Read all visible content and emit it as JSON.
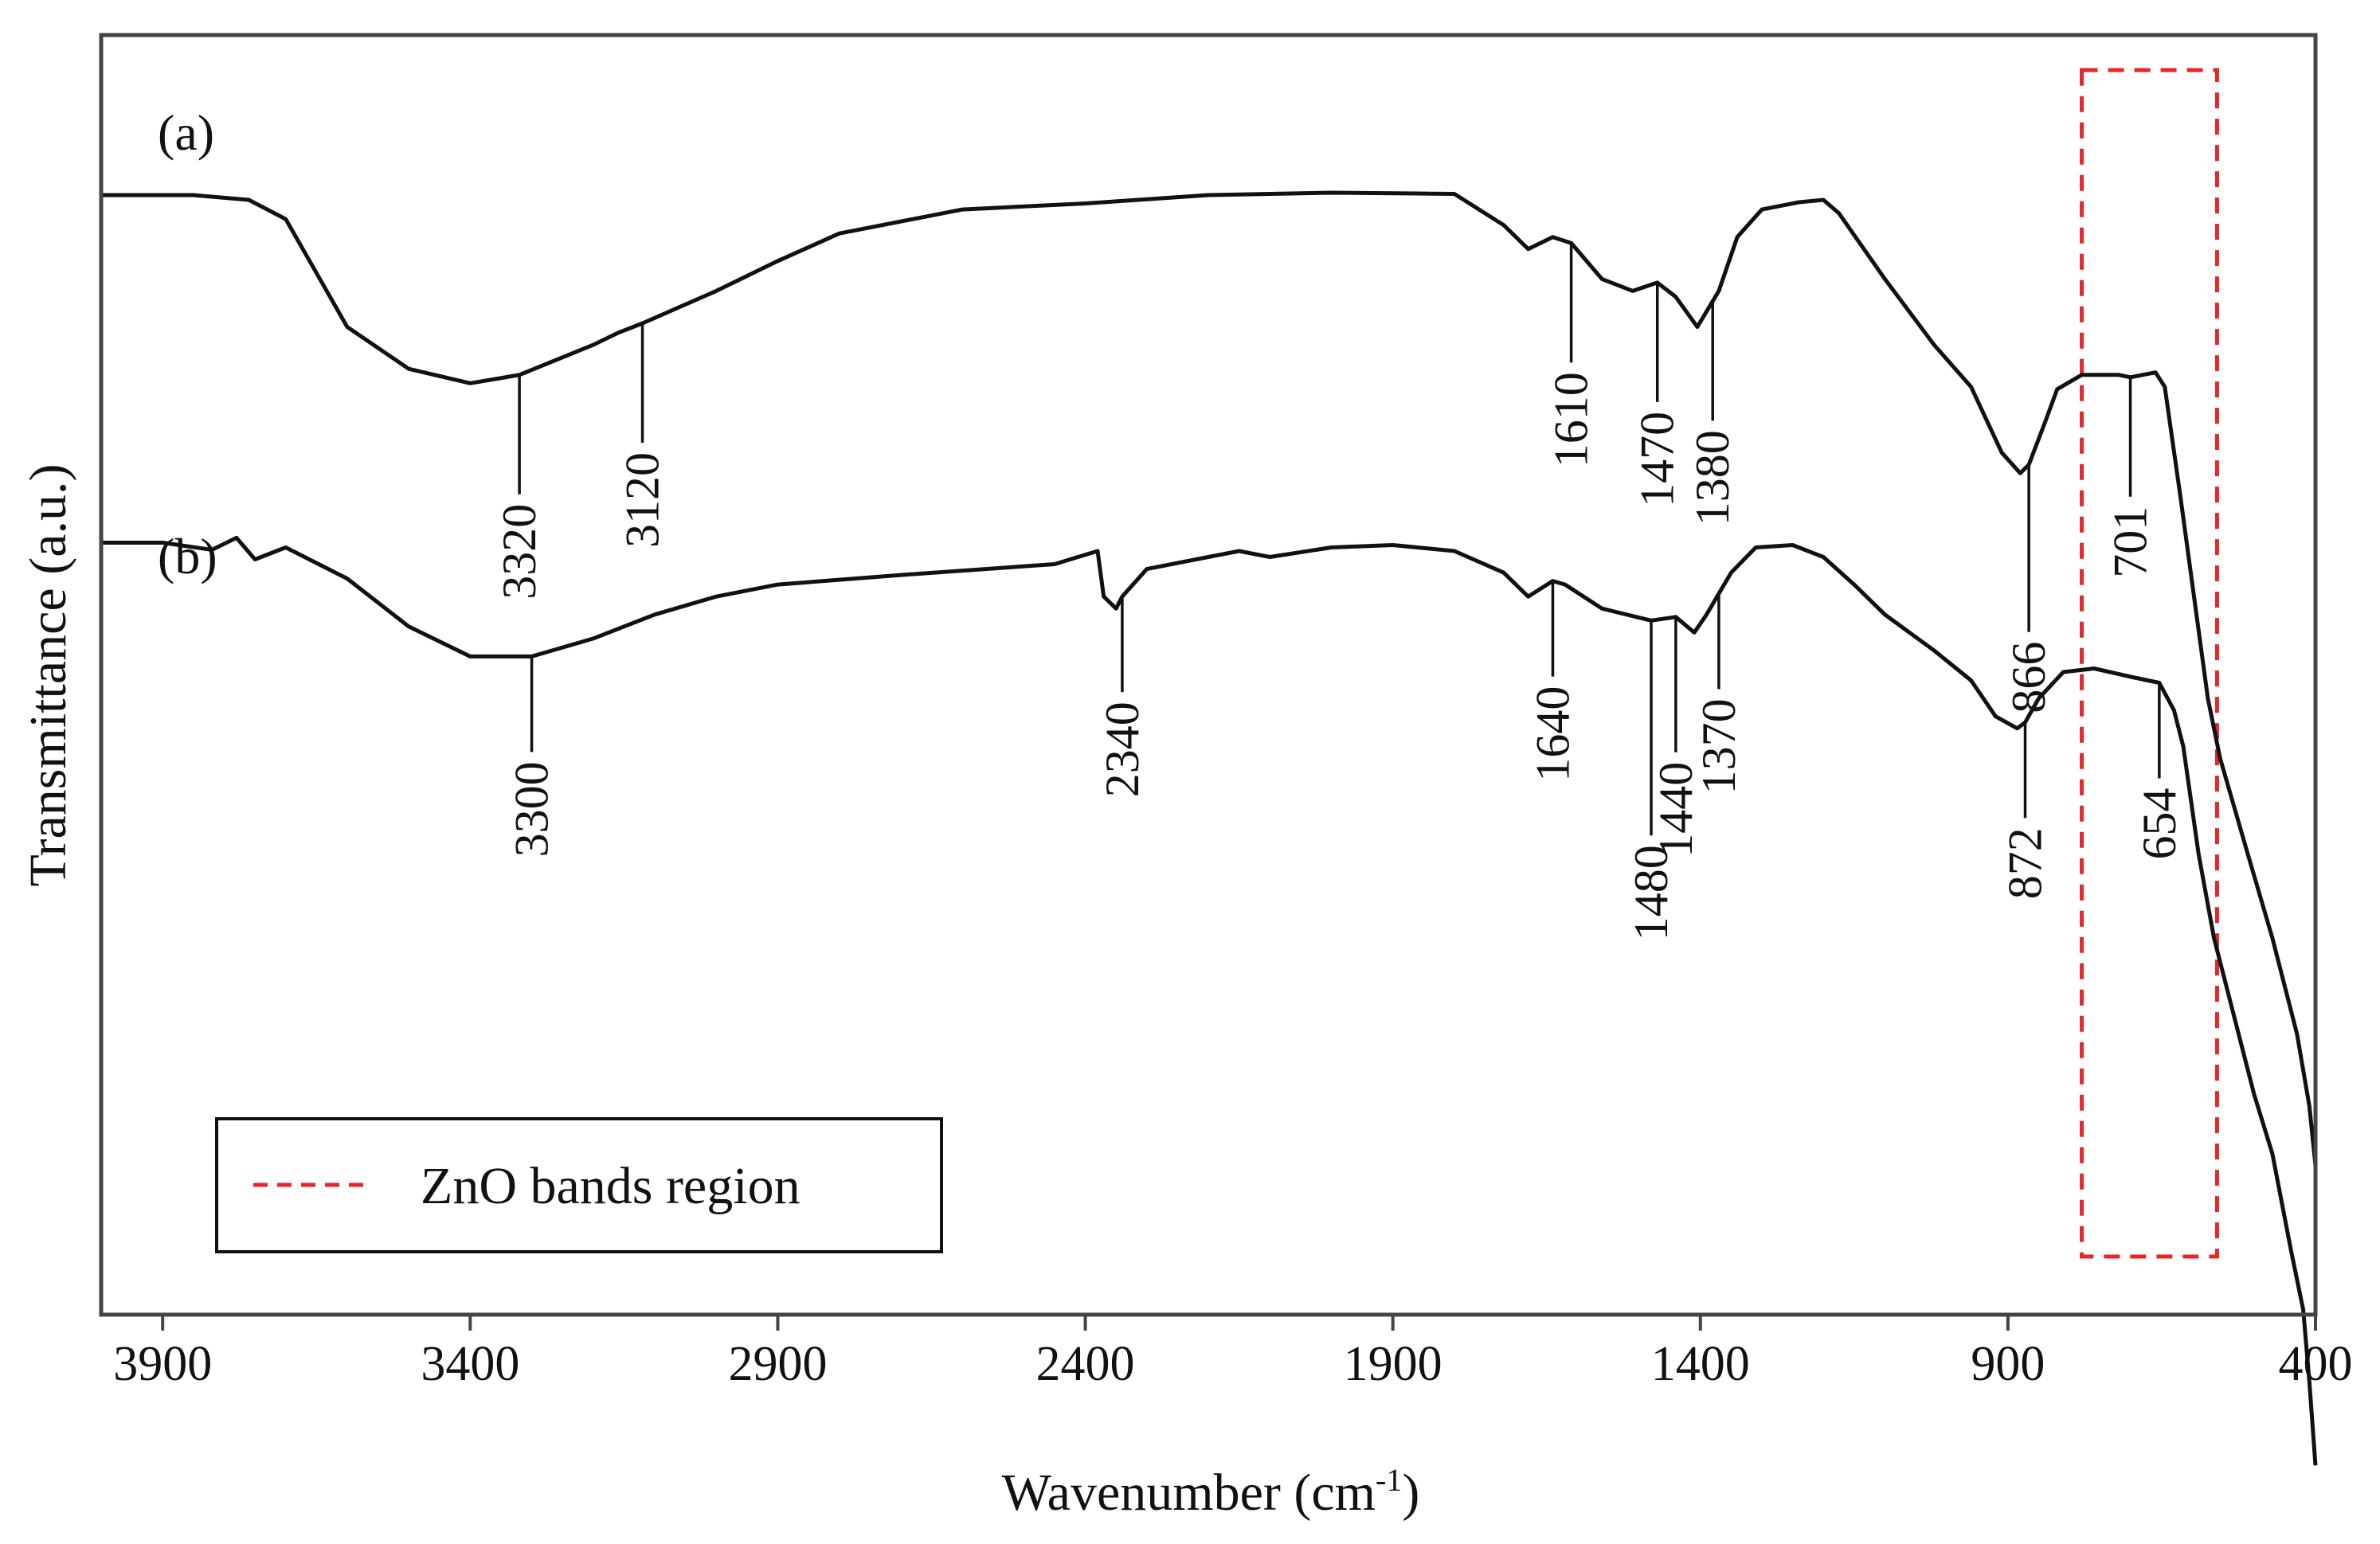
{
  "chart_data": {
    "type": "line",
    "title": "",
    "xlabel": "Wavenumber (cm",
    "xlabel_superscript": "-1",
    "xlabel_suffix": ")",
    "ylabel": "Transmittance (a.u.)",
    "xlim": [
      4000,
      400
    ],
    "x_reversed": true,
    "x_ticks": [
      3900,
      3400,
      2900,
      2400,
      1900,
      1400,
      900,
      400
    ],
    "y_ticks": [],
    "grid": false,
    "legend": {
      "position": "bottom-left",
      "entries": [
        {
          "label": "ZnO bands region",
          "style": "red-dashed"
        }
      ]
    },
    "highlight_region": {
      "label": "ZnO bands region",
      "x_range": [
        780,
        560
      ],
      "color": "#e8262a"
    },
    "series": [
      {
        "name": "(a)",
        "label": "(a)",
        "color": "#111111",
        "offset": 0,
        "points": [
          [
            4000,
            100
          ],
          [
            3850,
            100
          ],
          [
            3760,
            99.6
          ],
          [
            3700,
            98
          ],
          [
            3600,
            89
          ],
          [
            3500,
            85.5
          ],
          [
            3400,
            84.3
          ],
          [
            3320,
            85
          ],
          [
            3200,
            87.5
          ],
          [
            3160,
            88.5
          ],
          [
            3120,
            89.3
          ],
          [
            3000,
            92
          ],
          [
            2900,
            94.5
          ],
          [
            2800,
            96.8
          ],
          [
            2600,
            98.8
          ],
          [
            2400,
            99.3
          ],
          [
            2200,
            100
          ],
          [
            2000,
            100.2
          ],
          [
            1800,
            100.1
          ],
          [
            1720,
            97.5
          ],
          [
            1680,
            95.5
          ],
          [
            1640,
            96.5
          ],
          [
            1610,
            96
          ],
          [
            1560,
            93
          ],
          [
            1510,
            92
          ],
          [
            1470,
            92.7
          ],
          [
            1440,
            91.5
          ],
          [
            1405,
            89
          ],
          [
            1370,
            92
          ],
          [
            1340,
            96.5
          ],
          [
            1300,
            98.8
          ],
          [
            1240,
            99.4
          ],
          [
            1200,
            99.6
          ],
          [
            1175,
            98.5
          ],
          [
            1100,
            93
          ],
          [
            1020,
            87.5
          ],
          [
            960,
            84
          ],
          [
            910,
            78.5
          ],
          [
            880,
            76.8
          ],
          [
            866,
            77.5
          ],
          [
            840,
            81
          ],
          [
            820,
            83.8
          ],
          [
            780,
            85
          ],
          [
            720,
            85
          ],
          [
            701,
            84.8
          ],
          [
            660,
            85.2
          ],
          [
            645,
            84
          ],
          [
            620,
            75
          ],
          [
            575,
            58
          ],
          [
            555,
            53
          ],
          [
            510,
            45
          ],
          [
            470,
            38
          ],
          [
            430,
            30
          ],
          [
            410,
            24
          ],
          [
            400,
            19
          ]
        ],
        "peaks": [
          {
            "wavenumber": 3320,
            "label": "3320"
          },
          {
            "wavenumber": 3120,
            "label": "3120"
          },
          {
            "wavenumber": 1610,
            "label": "1610"
          },
          {
            "wavenumber": 1470,
            "label": "1470"
          },
          {
            "wavenumber": 1380,
            "label": "1380"
          },
          {
            "wavenumber": 866,
            "label": "866"
          },
          {
            "wavenumber": 701,
            "label": "701"
          }
        ]
      },
      {
        "name": "(b)",
        "label": "(b)",
        "color": "#111111",
        "offset": -30,
        "points": [
          [
            4000,
            101
          ],
          [
            3900,
            101
          ],
          [
            3820,
            100.4
          ],
          [
            3780,
            101.4
          ],
          [
            3750,
            99.6
          ],
          [
            3700,
            100.6
          ],
          [
            3600,
            98
          ],
          [
            3500,
            94
          ],
          [
            3400,
            91.5
          ],
          [
            3300,
            91.5
          ],
          [
            3200,
            93
          ],
          [
            3100,
            95
          ],
          [
            3000,
            96.5
          ],
          [
            2900,
            97.5
          ],
          [
            2700,
            98.3
          ],
          [
            2450,
            99.2
          ],
          [
            2380,
            100.3
          ],
          [
            2370,
            96.5
          ],
          [
            2350,
            95.5
          ],
          [
            2340,
            96.5
          ],
          [
            2300,
            98.8
          ],
          [
            2200,
            99.8
          ],
          [
            2150,
            100.3
          ],
          [
            2100,
            99.8
          ],
          [
            2000,
            100.6
          ],
          [
            1900,
            100.8
          ],
          [
            1800,
            100.3
          ],
          [
            1720,
            98.5
          ],
          [
            1680,
            96.5
          ],
          [
            1640,
            97.8
          ],
          [
            1620,
            97.5
          ],
          [
            1560,
            95.5
          ],
          [
            1480,
            94.5
          ],
          [
            1440,
            94.8
          ],
          [
            1410,
            93.5
          ],
          [
            1390,
            95
          ],
          [
            1350,
            98.5
          ],
          [
            1310,
            100.6
          ],
          [
            1250,
            100.8
          ],
          [
            1200,
            99.8
          ],
          [
            1150,
            97.5
          ],
          [
            1100,
            95
          ],
          [
            1020,
            92
          ],
          [
            960,
            89.5
          ],
          [
            920,
            86.5
          ],
          [
            885,
            85.5
          ],
          [
            872,
            86
          ],
          [
            850,
            88
          ],
          [
            810,
            90.2
          ],
          [
            760,
            90.5
          ],
          [
            700,
            89.8
          ],
          [
            654,
            89.3
          ],
          [
            630,
            87
          ],
          [
            615,
            84
          ],
          [
            590,
            75
          ],
          [
            565,
            68
          ],
          [
            540,
            63
          ],
          [
            500,
            55
          ],
          [
            470,
            50
          ],
          [
            440,
            42
          ],
          [
            420,
            37
          ],
          [
            410,
            31
          ],
          [
            400,
            24
          ]
        ],
        "peaks": [
          {
            "wavenumber": 3300,
            "label": "3300"
          },
          {
            "wavenumber": 2340,
            "label": "2340"
          },
          {
            "wavenumber": 1640,
            "label": "1640"
          },
          {
            "wavenumber": 1480,
            "label": "1480"
          },
          {
            "wavenumber": 1440,
            "label": "1440"
          },
          {
            "wavenumber": 1370,
            "label": "1370"
          },
          {
            "wavenumber": 872,
            "label": "872"
          },
          {
            "wavenumber": 654,
            "label": "654"
          }
        ]
      }
    ]
  }
}
